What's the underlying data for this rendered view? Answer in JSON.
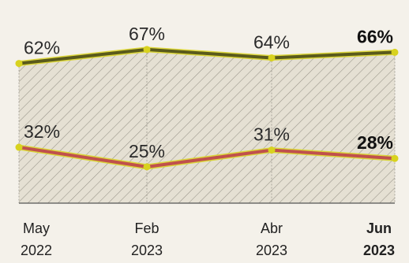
{
  "chart_data": {
    "type": "line",
    "categories": [
      "May 2022",
      "Feb 2023",
      "Abr 2023",
      "Jun 2023"
    ],
    "x_tick_labels": [
      {
        "month": "May",
        "year": "2022"
      },
      {
        "month": "Feb",
        "year": "2023"
      },
      {
        "month": "Abr",
        "year": "2023"
      },
      {
        "month": "Jun",
        "year": "2023"
      }
    ],
    "series": [
      {
        "values": [
          62,
          67,
          64,
          66
        ],
        "labels": [
          "62%",
          "67%",
          "64%",
          "66%"
        ],
        "color": "#5a5a1c",
        "marker_color": "#d8d21e"
      },
      {
        "values": [
          32,
          25,
          31,
          28
        ],
        "labels": [
          "32%",
          "25%",
          "31%",
          "28%"
        ],
        "color": "#c0504d",
        "marker_color": "#d8d21e"
      }
    ],
    "ylim": [
      12,
      74
    ],
    "grid": "vertical",
    "highlight_last": true,
    "band_fill": "diagonal hatch between series",
    "colors": {
      "background": "#f4f1ea",
      "band": "#e3ded0",
      "hatch": "#8e8a7e",
      "gridline": "#9a968c"
    }
  }
}
